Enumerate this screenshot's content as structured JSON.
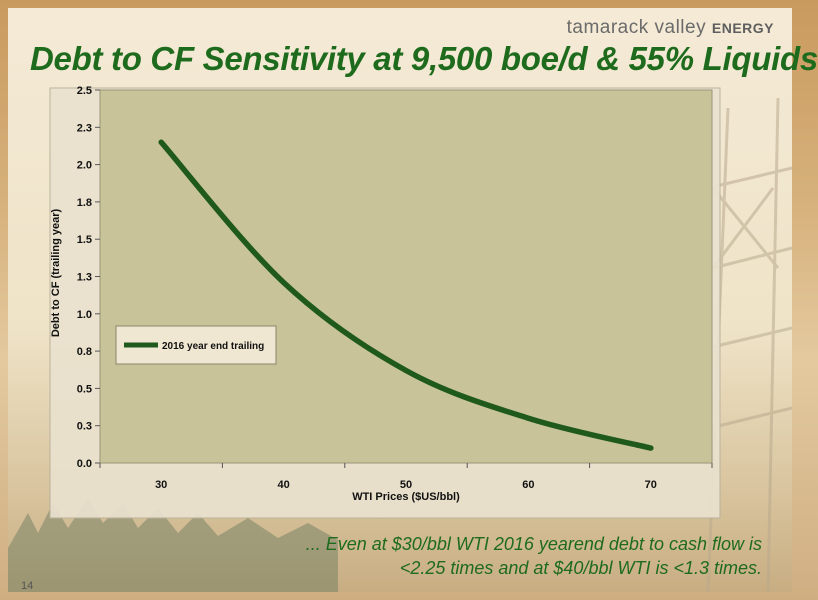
{
  "brand": {
    "name": "tamarack valley",
    "suffix": "ENERGY"
  },
  "slide": {
    "title": "Debt to CF Sensitivity at 9,500 boe/d & 55% Liquids",
    "page_number": "14",
    "footnote_line1": "... Even at $30/bbl WTI 2016 yearend debt to cash flow is",
    "footnote_line2": "<2.25 times and at $40/bbl WTI is <1.3 times."
  },
  "colors": {
    "title": "#1f6b1d",
    "line": "#1f5a1c",
    "plot_bg": "#c9c39a"
  },
  "chart_data": {
    "type": "line",
    "title": "",
    "xlabel": "WTI Prices ($US/bbl)",
    "ylabel": "Debt to CF (trailing year)",
    "categories": [
      30,
      40,
      50,
      60,
      70
    ],
    "x_tick_labels": [
      "30",
      "40",
      "50",
      "60",
      "70"
    ],
    "y_ticks": [
      0,
      0.25,
      0.5,
      0.75,
      1.0,
      1.25,
      1.5,
      1.75,
      2.0,
      2.25,
      2.5
    ],
    "y_tick_labels": [
      "0.0",
      "0.3",
      "0.5",
      "0.8",
      "1.0",
      "1.3",
      "1.5",
      "1.8",
      "2.0",
      "2.3",
      "2.5"
    ],
    "ylim": [
      0,
      2.5
    ],
    "grid": false,
    "legend_position": "middle-left",
    "series": [
      {
        "name": "2016 year end trailing",
        "values": [
          2.15,
          1.21,
          0.62,
          0.3,
          0.1
        ]
      }
    ]
  }
}
